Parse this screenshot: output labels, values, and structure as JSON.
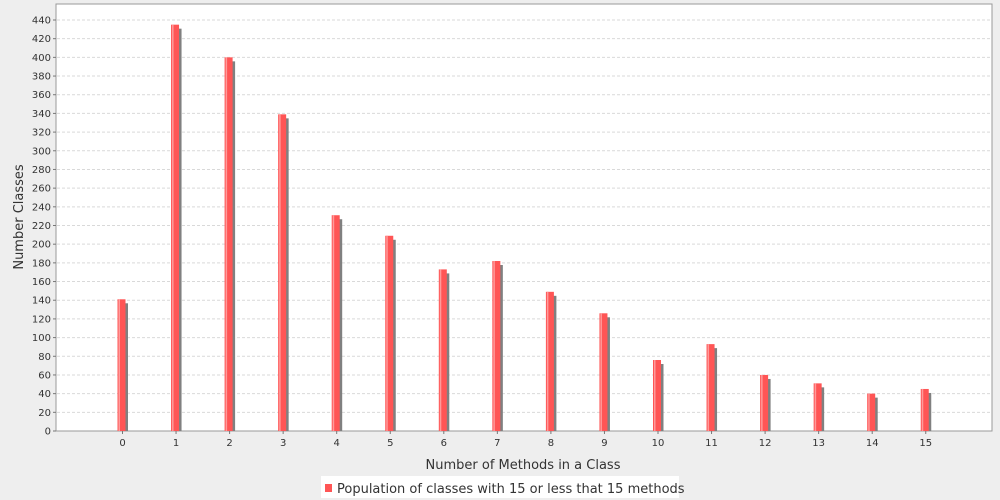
{
  "chart_data": {
    "type": "bar",
    "title": "",
    "xlabel": "Number of Methods in a Class",
    "ylabel": "Number Classes",
    "categories": [
      "0",
      "1",
      "2",
      "3",
      "4",
      "5",
      "6",
      "7",
      "8",
      "9",
      "10",
      "11",
      "12",
      "13",
      "14",
      "15"
    ],
    "series": [
      {
        "name": "Population of classes with 15 or less that 15 methods",
        "values": [
          141,
          435,
          400,
          339,
          231,
          209,
          173,
          182,
          149,
          126,
          76,
          93,
          60,
          51,
          40,
          45
        ]
      }
    ],
    "ylim": [
      0,
      450
    ],
    "yticks": [
      0,
      20,
      40,
      60,
      80,
      100,
      120,
      140,
      160,
      180,
      200,
      220,
      240,
      260,
      280,
      300,
      320,
      340,
      360,
      380,
      400,
      420,
      440
    ],
    "grid": true,
    "legend_position": "bottom",
    "colors": {
      "bar": "#ff5555",
      "bar_highlight": "#ff9a9a",
      "bar_shadow": "#808080",
      "grid": "#d9d9d9",
      "plot_background": "#ffffff",
      "page_background": "#eeeeee"
    }
  }
}
